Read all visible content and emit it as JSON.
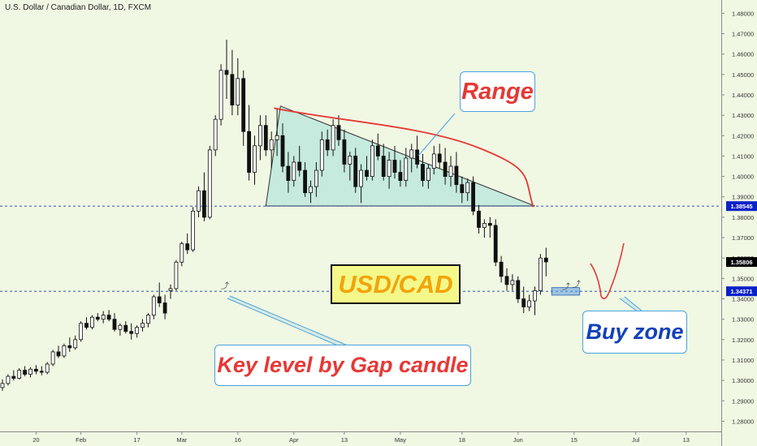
{
  "header": {
    "symbol_title": "U.S. Dollar / Canadian Dollar, 1D, FXCM"
  },
  "annotations": {
    "range": "Range",
    "pair": "USD/CAD",
    "key_level": "Key level by Gap candle",
    "buy_zone": "Buy zone"
  },
  "colors": {
    "background": "#f0f7e3",
    "bull_body": "#ffffff",
    "bear_body": "#111111",
    "range_fill": "#b8e6dc",
    "range_line": "#000000",
    "curve": "#e53935",
    "level_line": "#1241b9",
    "label_red": "#e53935",
    "label_blue": "#1241b9",
    "label_orange": "#f2a40a",
    "callout_border": "#4aa3df",
    "price_badge_dark": "#000000",
    "price_badge_blue": "#0b22c9"
  },
  "chart_data": {
    "type": "candlestick",
    "title": "U.S. Dollar / Canadian Dollar, 1D, FXCM",
    "ylim": [
      1.275,
      1.4865
    ],
    "y_ticks": [
      "1.48000",
      "1.47000",
      "1.46000",
      "1.45000",
      "1.44000",
      "1.43000",
      "1.42000",
      "1.41000",
      "1.40000",
      "1.39000",
      "1.38000",
      "1.37000",
      "1.36000",
      "1.35000",
      "1.34000",
      "1.33000",
      "1.32000",
      "1.31000",
      "1.30000",
      "1.29000",
      "1.28000"
    ],
    "x_ticks": [
      {
        "label": "20",
        "index": 6
      },
      {
        "label": "Feb",
        "index": 14
      },
      {
        "label": "17",
        "index": 24
      },
      {
        "label": "Mar",
        "index": 32
      },
      {
        "label": "16",
        "index": 42
      },
      {
        "label": "Apr",
        "index": 52
      },
      {
        "label": "13",
        "index": 61
      },
      {
        "label": "May",
        "index": 71
      },
      {
        "label": "18",
        "index": 82
      },
      {
        "label": "Jun",
        "index": 92
      },
      {
        "label": "15",
        "index": 102
      },
      {
        "label": "Jul",
        "index": 113
      },
      {
        "label": "13",
        "index": 122
      }
    ],
    "price_labels": [
      {
        "value": 1.38545,
        "text": "1.38545",
        "style": "blue"
      },
      {
        "value": 1.35806,
        "text": "1.35806",
        "style": "dark"
      },
      {
        "value": 1.34371,
        "text": "1.34371",
        "style": "blue"
      }
    ],
    "levels": [
      {
        "name": "Range bottom",
        "value": 1.38545
      },
      {
        "name": "Key level",
        "value": 1.34371
      }
    ],
    "range_triangle": {
      "start_index": 47,
      "end_index": 95,
      "top": 1.4345,
      "bottom": 1.3855
    },
    "buy_zone": {
      "start_index": 98,
      "end_index": 103,
      "low": 1.3418,
      "high": 1.3455
    },
    "candles": [
      [
        1.2965,
        1.3005,
        1.295,
        1.2985
      ],
      [
        1.2985,
        1.303,
        1.2975,
        1.302
      ],
      [
        1.302,
        1.305,
        1.3,
        1.301
      ],
      [
        1.301,
        1.306,
        1.3005,
        1.305
      ],
      [
        1.305,
        1.307,
        1.302,
        1.303
      ],
      [
        1.303,
        1.3065,
        1.3015,
        1.3055
      ],
      [
        1.3055,
        1.3075,
        1.303,
        1.3045
      ],
      [
        1.3045,
        1.307,
        1.3025,
        1.304
      ],
      [
        1.304,
        1.309,
        1.303,
        1.308
      ],
      [
        1.308,
        1.315,
        1.307,
        1.314
      ],
      [
        1.314,
        1.317,
        1.311,
        1.312
      ],
      [
        1.312,
        1.318,
        1.311,
        1.317
      ],
      [
        1.317,
        1.321,
        1.314,
        1.316
      ],
      [
        1.316,
        1.322,
        1.315,
        1.32
      ],
      [
        1.32,
        1.329,
        1.319,
        1.328
      ],
      [
        1.328,
        1.331,
        1.325,
        1.326
      ],
      [
        1.326,
        1.332,
        1.325,
        1.331
      ],
      [
        1.331,
        1.333,
        1.329,
        1.33
      ],
      [
        1.33,
        1.334,
        1.328,
        1.332
      ],
      [
        1.332,
        1.3345,
        1.329,
        1.33
      ],
      [
        1.33,
        1.333,
        1.324,
        1.325
      ],
      [
        1.325,
        1.328,
        1.322,
        1.327
      ],
      [
        1.327,
        1.329,
        1.323,
        1.324
      ],
      [
        1.324,
        1.328,
        1.32,
        1.323
      ],
      [
        1.323,
        1.327,
        1.321,
        1.326
      ],
      [
        1.326,
        1.33,
        1.324,
        1.328
      ],
      [
        1.328,
        1.333,
        1.326,
        1.332
      ],
      [
        1.332,
        1.342,
        1.33,
        1.341
      ],
      [
        1.341,
        1.348,
        1.336,
        1.338
      ],
      [
        1.338,
        1.342,
        1.33,
        1.333
      ],
      [
        1.344,
        1.347,
        1.34,
        1.345
      ],
      [
        1.345,
        1.359,
        1.344,
        1.358
      ],
      [
        1.358,
        1.368,
        1.356,
        1.367
      ],
      [
        1.367,
        1.372,
        1.362,
        1.364
      ],
      [
        1.364,
        1.385,
        1.363,
        1.383
      ],
      [
        1.383,
        1.395,
        1.38,
        1.393
      ],
      [
        1.393,
        1.402,
        1.378,
        1.38
      ],
      [
        1.38,
        1.415,
        1.379,
        1.413
      ],
      [
        1.413,
        1.43,
        1.41,
        1.428
      ],
      [
        1.428,
        1.455,
        1.425,
        1.452
      ],
      [
        1.452,
        1.467,
        1.438,
        1.45
      ],
      [
        1.45,
        1.462,
        1.43,
        1.435
      ],
      [
        1.435,
        1.458,
        1.43,
        1.448
      ],
      [
        1.448,
        1.452,
        1.415,
        1.422
      ],
      [
        1.422,
        1.435,
        1.398,
        1.402
      ],
      [
        1.402,
        1.42,
        1.396,
        1.415
      ],
      [
        1.415,
        1.43,
        1.408,
        1.425
      ],
      [
        1.425,
        1.43,
        1.41,
        1.413
      ],
      [
        1.413,
        1.422,
        1.404,
        1.418
      ],
      [
        1.418,
        1.433,
        1.41,
        1.42
      ],
      [
        1.42,
        1.426,
        1.402,
        1.405
      ],
      [
        1.405,
        1.412,
        1.392,
        1.398
      ],
      [
        1.398,
        1.41,
        1.395,
        1.407
      ],
      [
        1.407,
        1.415,
        1.4,
        1.403
      ],
      [
        1.403,
        1.407,
        1.39,
        1.392
      ],
      [
        1.392,
        1.398,
        1.387,
        1.395
      ],
      [
        1.395,
        1.407,
        1.39,
        1.403
      ],
      [
        1.403,
        1.422,
        1.4,
        1.418
      ],
      [
        1.418,
        1.423,
        1.41,
        1.413
      ],
      [
        1.413,
        1.428,
        1.41,
        1.425
      ],
      [
        1.425,
        1.43,
        1.415,
        1.418
      ],
      [
        1.418,
        1.423,
        1.402,
        1.406
      ],
      [
        1.406,
        1.412,
        1.398,
        1.41
      ],
      [
        1.41,
        1.414,
        1.392,
        1.395
      ],
      [
        1.395,
        1.406,
        1.387,
        1.403
      ],
      [
        1.403,
        1.41,
        1.398,
        1.4
      ],
      [
        1.4,
        1.418,
        1.398,
        1.415
      ],
      [
        1.415,
        1.421,
        1.408,
        1.41
      ],
      [
        1.41,
        1.416,
        1.398,
        1.4
      ],
      [
        1.4,
        1.412,
        1.394,
        1.408
      ],
      [
        1.408,
        1.415,
        1.399,
        1.402
      ],
      [
        1.402,
        1.408,
        1.395,
        1.398
      ],
      [
        1.398,
        1.414,
        1.395,
        1.409
      ],
      [
        1.409,
        1.416,
        1.402,
        1.413
      ],
      [
        1.413,
        1.42,
        1.404,
        1.406
      ],
      [
        1.406,
        1.411,
        1.395,
        1.398
      ],
      [
        1.398,
        1.406,
        1.394,
        1.404
      ],
      [
        1.404,
        1.415,
        1.401,
        1.411
      ],
      [
        1.411,
        1.416,
        1.404,
        1.407
      ],
      [
        1.407,
        1.414,
        1.396,
        1.4
      ],
      [
        1.4,
        1.41,
        1.395,
        1.405
      ],
      [
        1.405,
        1.412,
        1.392,
        1.396
      ],
      [
        1.396,
        1.4,
        1.387,
        1.392
      ],
      [
        1.392,
        1.399,
        1.388,
        1.397
      ],
      [
        1.397,
        1.4,
        1.381,
        1.383
      ],
      [
        1.383,
        1.386,
        1.372,
        1.375
      ],
      [
        1.375,
        1.379,
        1.37,
        1.377
      ],
      [
        1.377,
        1.38,
        1.37,
        1.376
      ],
      [
        1.376,
        1.379,
        1.356,
        1.358
      ],
      [
        1.358,
        1.361,
        1.348,
        1.351
      ],
      [
        1.351,
        1.355,
        1.344,
        1.347
      ],
      [
        1.347,
        1.352,
        1.344,
        1.349
      ],
      [
        1.349,
        1.351,
        1.338,
        1.34
      ],
      [
        1.34,
        1.346,
        1.333,
        1.336
      ],
      [
        1.336,
        1.342,
        1.334,
        1.339
      ],
      [
        1.339,
        1.346,
        1.332,
        1.344
      ],
      [
        1.344,
        1.362,
        1.342,
        1.36
      ],
      [
        1.36,
        1.365,
        1.351,
        1.3581
      ]
    ]
  }
}
